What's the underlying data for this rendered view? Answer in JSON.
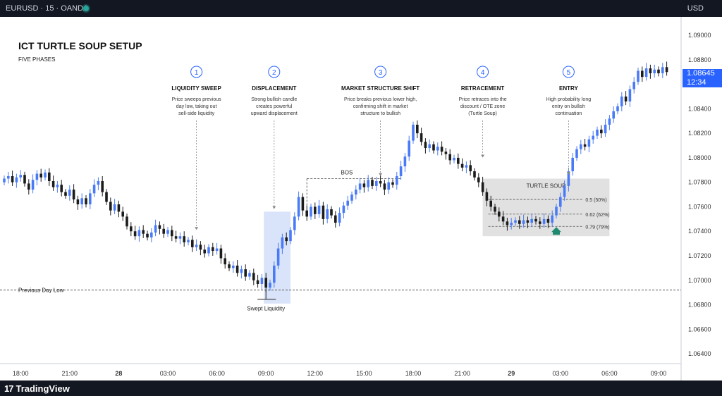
{
  "header": {
    "symbol": "EURUSD · 15 · OANDA",
    "currency": "USD"
  },
  "footer": {
    "brand": "TradingView"
  },
  "colors": {
    "bull": "#4a7bf7",
    "bear": "#1c1c1c",
    "background": "#ffffff",
    "frame": "#131722",
    "price_tag": "#2962ff",
    "entry_arrow": "#1f8a6f"
  },
  "price_tag": {
    "price": "1.08645",
    "countdown": "12:34"
  },
  "chart_data": {
    "type": "candlestick",
    "title": "ICT TURTLE SOUP SETUP",
    "subtitle": "FIVE PHASES",
    "ylim": [
      1.0632,
      1.0915
    ],
    "y_ticks": [
      "1.09000",
      "1.08800",
      "1.08600",
      "1.08400",
      "1.08200",
      "1.08000",
      "1.07800",
      "1.07600",
      "1.07400",
      "1.07200",
      "1.07000",
      "1.06800",
      "1.06600",
      "1.06400"
    ],
    "x_ticks": [
      {
        "label": "18:00",
        "bar": 4
      },
      {
        "label": "21:00",
        "bar": 16
      },
      {
        "label": "28",
        "bar": 28
      },
      {
        "label": "03:00",
        "bar": 40
      },
      {
        "label": "06:00",
        "bar": 52
      },
      {
        "label": "09:00",
        "bar": 64
      },
      {
        "label": "12:00",
        "bar": 76
      },
      {
        "label": "15:00",
        "bar": 88
      },
      {
        "label": "18:00",
        "bar": 100
      },
      {
        "label": "21:00",
        "bar": 112
      },
      {
        "label": "29",
        "bar": 124
      },
      {
        "label": "03:00",
        "bar": 136
      },
      {
        "label": "06:00",
        "bar": 148
      },
      {
        "label": "09:00",
        "bar": 160
      }
    ],
    "closes": [
      1.0783,
      1.0785,
      1.078,
      1.0784,
      1.0786,
      1.0779,
      1.0774,
      1.0782,
      1.0787,
      1.0784,
      1.0788,
      1.0781,
      1.0776,
      1.0778,
      1.0772,
      1.0769,
      1.0774,
      1.0766,
      1.0762,
      1.0767,
      1.0762,
      1.0771,
      1.0778,
      1.0781,
      1.0772,
      1.0764,
      1.0757,
      1.0762,
      1.0756,
      1.0752,
      1.0744,
      1.074,
      1.0736,
      1.0741,
      1.0738,
      1.0735,
      1.0739,
      1.0745,
      1.0742,
      1.0738,
      1.0741,
      1.0736,
      1.0734,
      1.0736,
      1.0731,
      1.0733,
      1.0727,
      1.0729,
      1.0725,
      1.0722,
      1.0727,
      1.0724,
      1.0726,
      1.0718,
      1.0713,
      1.071,
      1.0712,
      1.0706,
      1.0709,
      1.0703,
      1.0706,
      1.07,
      1.0697,
      1.0702,
      1.0694,
      1.0698,
      1.0712,
      1.0726,
      1.0735,
      1.0732,
      1.0741,
      1.0752,
      1.0768,
      1.0757,
      1.0752,
      1.076,
      1.0754,
      1.0761,
      1.075,
      1.0758,
      1.0753,
      1.0747,
      1.0755,
      1.0761,
      1.0765,
      1.077,
      1.0774,
      1.0779,
      1.0776,
      1.0782,
      1.0777,
      1.0781,
      1.0779,
      1.0774,
      1.078,
      1.0778,
      1.0785,
      1.0793,
      1.0801,
      1.0814,
      1.0827,
      1.082,
      1.0813,
      1.0808,
      1.0811,
      1.0806,
      1.0809,
      1.0805,
      1.0803,
      1.0798,
      1.08,
      1.0795,
      1.0792,
      1.0794,
      1.0789,
      1.0784,
      1.078,
      1.0772,
      1.0765,
      1.076,
      1.0756,
      1.0752,
      1.0748,
      1.0745,
      1.0747,
      1.0749,
      1.0746,
      1.0749,
      1.0747,
      1.075,
      1.0748,
      1.0746,
      1.075,
      1.0747,
      1.0753,
      1.076,
      1.0768,
      1.0777,
      1.0789,
      1.08,
      1.0807,
      1.0811,
      1.0809,
      1.0815,
      1.0818,
      1.0823,
      1.082,
      1.0827,
      1.0832,
      1.0838,
      1.0842,
      1.085,
      1.0846,
      1.0856,
      1.0862,
      1.0871,
      1.0866,
      1.0873,
      1.0869,
      1.0872,
      1.0869,
      1.0874,
      1.087
    ],
    "annotations": {
      "previous_day_low": {
        "label": "Previous Day Low",
        "price": 1.0692
      },
      "swept_liquidity": {
        "label": "Swept Liquidity",
        "bar": 64,
        "price": 1.0688
      },
      "bos": {
        "label": "BOS",
        "price": 1.0783,
        "from_bar": 74,
        "to_bar": 97
      },
      "displacement_zone": {
        "from_bar": 63.5,
        "to_bar": 70,
        "price_low": 1.0681,
        "price_high": 1.0756
      },
      "turtle_soup": {
        "label": "TURTLE SOUP",
        "from_bar": 117,
        "to_bar": 148,
        "price_low": 1.0736,
        "price_high": 1.0783,
        "levels": [
          {
            "label": "0.5 (50%)",
            "price": 1.0766
          },
          {
            "label": "0.62 (62%)",
            "price": 1.0754
          },
          {
            "label": "0.79 (79%)",
            "price": 1.0744
          }
        ],
        "entry_bar": 135
      }
    },
    "phases": [
      {
        "num": "1",
        "title": "LIQUIDITY SWEEP",
        "lines": [
          "Price sweeps previous",
          "day low, taking out",
          "sell-side liquidity"
        ],
        "bar": 47,
        "to_price": 1.074
      },
      {
        "num": "2",
        "title": "DISPLACEMENT",
        "lines": [
          "Strong bullish candle",
          "creates powerful",
          "upward displacement"
        ],
        "bar": 66,
        "to_price": 1.0757
      },
      {
        "num": "3",
        "title": "MARKET STRUCTURE SHIFT",
        "lines": [
          "Price breaks previous lower high,",
          "confirming shift in market",
          "structure to bullish"
        ],
        "bar": 92,
        "to_price": 1.0784
      },
      {
        "num": "4",
        "title": "RETRACEMENT",
        "lines": [
          "Price retraces into the",
          "discount / OTE zone",
          "(Turtle Soup)"
        ],
        "bar": 117,
        "to_price": 1.0799
      },
      {
        "num": "5",
        "title": "ENTRY",
        "lines": [
          "High probability long",
          "entry on bullish",
          "continuation"
        ],
        "bar": 138,
        "to_price": 1.0785
      }
    ]
  }
}
